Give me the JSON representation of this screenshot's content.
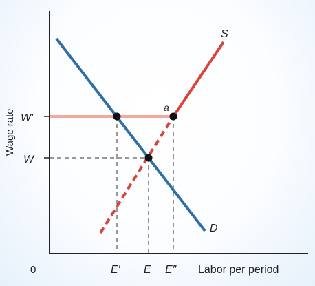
{
  "diagram": {
    "ylabel": "Wage rate",
    "xlabel": "Labor per period",
    "origin": "0",
    "wage_labels": {
      "w_prime": "W′",
      "w": "W"
    },
    "employment_labels": {
      "e_prime": "E′",
      "e": "E",
      "e_double_prime": "E″"
    },
    "curve_labels": {
      "supply": "S",
      "demand": "D"
    },
    "point_label": "a",
    "colors": {
      "demand": "#2f6fa6",
      "supply": "#d9443b",
      "wage_floor": "#f2a99b",
      "axis": "#222222",
      "guides": "#333333"
    }
  }
}
